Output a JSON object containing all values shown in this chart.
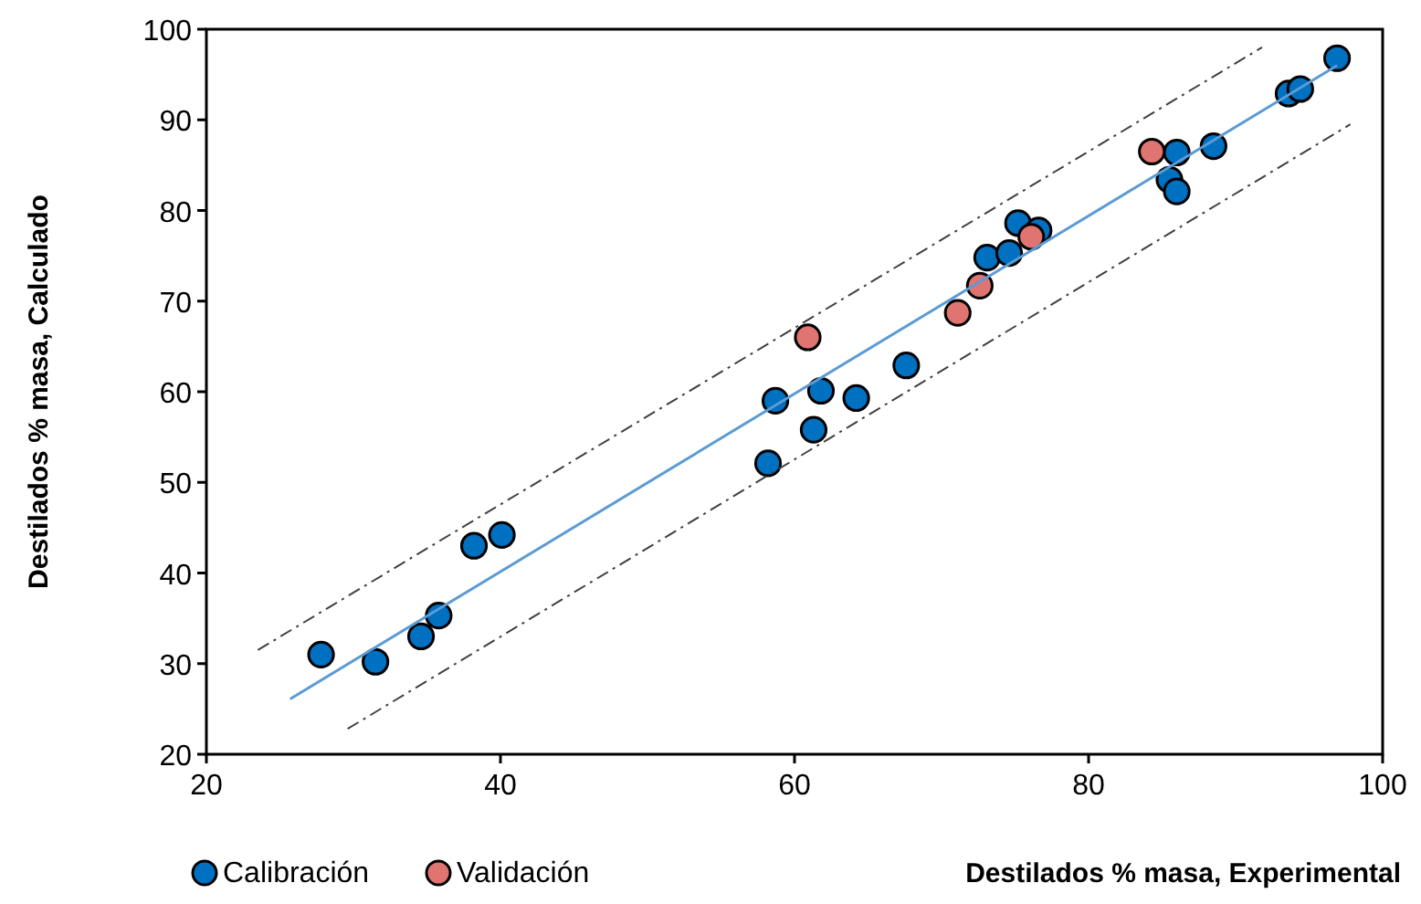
{
  "chart_data": {
    "type": "scatter",
    "xlabel": "Destilados % masa,  Experimental",
    "ylabel": "Destilados % masa,  Calculado",
    "xlim": [
      20,
      100
    ],
    "ylim": [
      20,
      100
    ],
    "xticks": [
      20,
      40,
      60,
      80,
      100
    ],
    "yticks": [
      20,
      30,
      40,
      50,
      60,
      70,
      80,
      90,
      100
    ],
    "grid": false,
    "legend": "bottom left",
    "marker": "circle",
    "series": [
      {
        "name": "Calibración",
        "color": "#0070c0",
        "x": [
          27.8,
          31.5,
          34.6,
          35.8,
          38.2,
          40.1,
          58.2,
          58.7,
          61.3,
          61.8,
          64.2,
          67.6,
          73.1,
          74.6,
          75.2,
          76.6,
          85.5,
          86,
          86,
          88.5,
          93.6,
          94.4,
          96.9
        ],
        "values": [
          31,
          30.2,
          33,
          35.3,
          43,
          44.2,
          52.1,
          59,
          55.8,
          60.1,
          59.3,
          62.9,
          74.8,
          75.3,
          78.6,
          77.8,
          83.4,
          82.1,
          86.4,
          87.1,
          92.9,
          93.4,
          96.8
        ]
      },
      {
        "name": "Validación",
        "color": "#e07470",
        "x": [
          60.9,
          71.1,
          72.6,
          76.1,
          84.3
        ],
        "values": [
          66,
          68.7,
          71.7,
          77.1,
          86.5
        ]
      },
      {
        "type": "line",
        "color": "#5b9bd5",
        "line_style": "solid",
        "marker": "none",
        "x": [
          25.7,
          96.9
        ],
        "values": [
          26.1,
          96
        ]
      },
      {
        "type": "line",
        "color": "#404040",
        "line_style": "dashed",
        "marker": "none",
        "x": [
          23.5,
          91.8
        ],
        "values": [
          31.5,
          98
        ]
      },
      {
        "type": "line",
        "color": "#404040",
        "line_style": "dashed",
        "marker": "none",
        "x": [
          29.6,
          97.8
        ],
        "values": [
          22.8,
          89.5
        ]
      }
    ]
  }
}
